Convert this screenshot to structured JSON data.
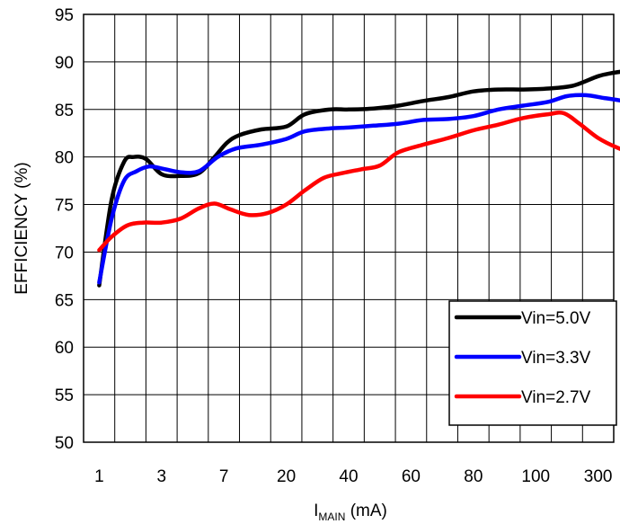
{
  "chart_data": {
    "type": "line",
    "title": "",
    "ylabel": "EFFICIENCY (%)",
    "xlabel_main": "I",
    "xlabel_sub": "MAIN",
    "xlabel_unit": " (mA)",
    "x_tick_labels": [
      "1",
      "3",
      "7",
      "20",
      "40",
      "60",
      "80",
      "100",
      "300"
    ],
    "ylim": [
      50,
      95
    ],
    "y_ticks": [
      50,
      55,
      60,
      65,
      70,
      75,
      80,
      85,
      90,
      95
    ],
    "grid": true,
    "legend_position": "bottom-right",
    "series": [
      {
        "name": "Vin=5.0V",
        "color": "#000000",
        "x": [
          0.0,
          0.2,
          0.4,
          0.55,
          0.75,
          1.0,
          1.3,
          1.6,
          1.85,
          2.05,
          2.25,
          2.6,
          3.0,
          3.3,
          3.7,
          4.0,
          4.4,
          4.8,
          5.2,
          5.6,
          6.0,
          6.4,
          6.8,
          7.2,
          7.6,
          8.0,
          8.2,
          8.4,
          8.55,
          8.75
        ],
        "y": [
          66.5,
          75.5,
          79.5,
          80.0,
          79.8,
          78.2,
          78.0,
          78.3,
          80.0,
          81.5,
          82.3,
          82.9,
          83.2,
          84.5,
          85.0,
          85.0,
          85.1,
          85.4,
          85.9,
          86.3,
          86.9,
          87.1,
          87.1,
          87.2,
          87.5,
          88.5,
          88.8,
          89.0,
          89.1,
          89.1
        ]
      },
      {
        "name": "Vin=3.3V",
        "color": "#0000ff",
        "x": [
          0.0,
          0.2,
          0.4,
          0.6,
          0.8,
          1.0,
          1.3,
          1.6,
          1.9,
          2.2,
          2.6,
          3.0,
          3.3,
          3.7,
          4.0,
          4.4,
          4.8,
          5.2,
          5.6,
          6.0,
          6.4,
          6.8,
          7.2,
          7.5,
          7.8,
          8.1,
          8.4,
          8.75
        ],
        "y": [
          66.8,
          73.5,
          77.5,
          78.5,
          79.0,
          78.8,
          78.4,
          78.5,
          80.0,
          80.9,
          81.3,
          81.9,
          82.7,
          83.0,
          83.1,
          83.3,
          83.5,
          83.9,
          84.0,
          84.3,
          85.0,
          85.4,
          85.8,
          86.4,
          86.5,
          86.2,
          85.9,
          85.5
        ]
      },
      {
        "name": "Vin=2.7V",
        "color": "#ff0000",
        "x": [
          0.0,
          0.2,
          0.45,
          0.7,
          1.0,
          1.3,
          1.6,
          1.85,
          2.1,
          2.4,
          2.7,
          3.0,
          3.3,
          3.6,
          3.9,
          4.2,
          4.5,
          4.8,
          5.2,
          5.6,
          6.0,
          6.4,
          6.8,
          7.2,
          7.45,
          7.7,
          8.0,
          8.3,
          8.75
        ],
        "y": [
          70.2,
          71.6,
          72.8,
          73.1,
          73.1,
          73.5,
          74.6,
          75.1,
          74.5,
          73.9,
          74.1,
          75.0,
          76.5,
          77.8,
          78.3,
          78.7,
          79.1,
          80.5,
          81.3,
          82.0,
          82.8,
          83.4,
          84.1,
          84.5,
          84.6,
          83.5,
          82.0,
          81.0,
          79.9
        ]
      }
    ]
  }
}
